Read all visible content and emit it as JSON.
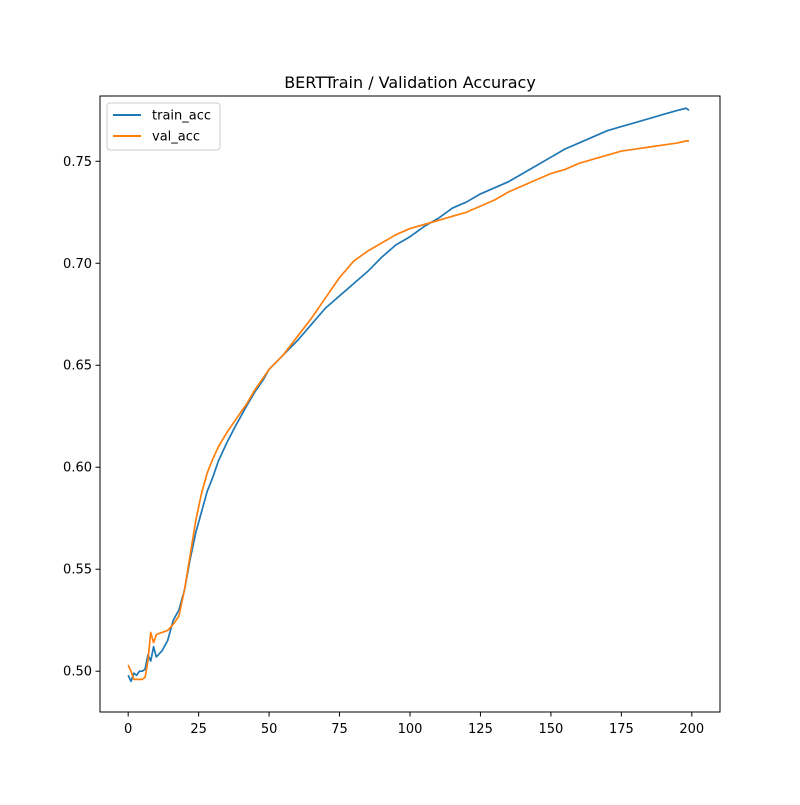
{
  "chart_data": {
    "type": "line",
    "title": "BERTTrain / Validation Accuracy",
    "xlabel": "",
    "ylabel": "",
    "xlim": [
      -10,
      210
    ],
    "ylim": [
      0.48,
      0.782
    ],
    "x_ticks": [
      0,
      25,
      50,
      75,
      100,
      125,
      150,
      175,
      200
    ],
    "y_ticks": [
      0.5,
      0.55,
      0.6,
      0.65,
      0.7,
      0.75
    ],
    "y_tick_labels": [
      "0.50",
      "0.55",
      "0.60",
      "0.65",
      "0.70",
      "0.75"
    ],
    "grid": false,
    "legend_placement": "upper-left",
    "series": [
      {
        "name": "train_acc",
        "color": "#1f77b4",
        "x": [
          0,
          1,
          2,
          3,
          4,
          5,
          6,
          7,
          8,
          9,
          10,
          12,
          14,
          16,
          18,
          20,
          22,
          24,
          26,
          28,
          30,
          32,
          35,
          38,
          40,
          42,
          45,
          48,
          50,
          55,
          60,
          65,
          70,
          75,
          80,
          85,
          90,
          95,
          100,
          105,
          110,
          115,
          120,
          125,
          130,
          135,
          140,
          145,
          150,
          155,
          160,
          165,
          170,
          175,
          180,
          185,
          190,
          195,
          198,
          199
        ],
        "y": [
          0.498,
          0.495,
          0.499,
          0.498,
          0.5,
          0.5,
          0.501,
          0.508,
          0.505,
          0.512,
          0.507,
          0.51,
          0.515,
          0.525,
          0.53,
          0.54,
          0.555,
          0.568,
          0.578,
          0.588,
          0.595,
          0.603,
          0.612,
          0.62,
          0.625,
          0.63,
          0.637,
          0.643,
          0.648,
          0.655,
          0.662,
          0.67,
          0.678,
          0.684,
          0.69,
          0.696,
          0.703,
          0.709,
          0.713,
          0.718,
          0.722,
          0.727,
          0.73,
          0.734,
          0.737,
          0.74,
          0.744,
          0.748,
          0.752,
          0.756,
          0.759,
          0.762,
          0.765,
          0.767,
          0.769,
          0.771,
          0.773,
          0.775,
          0.776,
          0.775
        ]
      },
      {
        "name": "val_acc",
        "color": "#ff7f0e",
        "x": [
          0,
          1,
          2,
          3,
          4,
          5,
          6,
          7,
          8,
          9,
          10,
          12,
          14,
          16,
          18,
          20,
          22,
          24,
          26,
          28,
          30,
          32,
          35,
          38,
          40,
          42,
          45,
          48,
          50,
          55,
          60,
          65,
          70,
          75,
          80,
          85,
          90,
          95,
          100,
          105,
          110,
          115,
          120,
          125,
          130,
          135,
          140,
          145,
          150,
          155,
          160,
          165,
          170,
          175,
          180,
          185,
          190,
          195,
          198,
          199
        ],
        "y": [
          0.503,
          0.5,
          0.496,
          0.496,
          0.496,
          0.496,
          0.497,
          0.505,
          0.519,
          0.514,
          0.518,
          0.519,
          0.52,
          0.523,
          0.527,
          0.54,
          0.557,
          0.574,
          0.587,
          0.597,
          0.604,
          0.61,
          0.617,
          0.623,
          0.627,
          0.631,
          0.638,
          0.644,
          0.648,
          0.655,
          0.664,
          0.673,
          0.683,
          0.693,
          0.701,
          0.706,
          0.71,
          0.714,
          0.717,
          0.719,
          0.721,
          0.723,
          0.725,
          0.728,
          0.731,
          0.735,
          0.738,
          0.741,
          0.744,
          0.746,
          0.749,
          0.751,
          0.753,
          0.755,
          0.756,
          0.757,
          0.758,
          0.759,
          0.76,
          0.76
        ]
      }
    ]
  }
}
